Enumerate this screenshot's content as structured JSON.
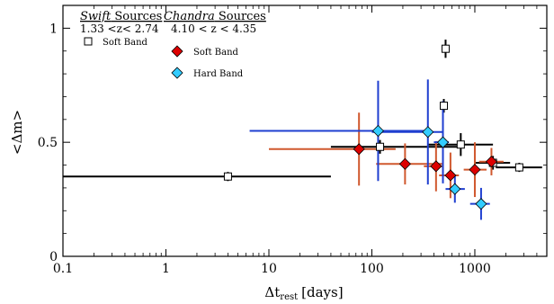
{
  "chart_data": {
    "type": "scatter",
    "xlabel_main": "Δt",
    "xlabel_sub": "rest",
    "xlabel_unit": "[days]",
    "ylabel": "<Δm>",
    "x_scale": "log",
    "xlim": [
      0.1,
      5000
    ],
    "ylim": [
      0,
      1.1
    ],
    "x_ticks": [
      {
        "value": 0.1,
        "label": "0.1"
      },
      {
        "value": 1,
        "label": "1"
      },
      {
        "value": 10,
        "label": "10"
      },
      {
        "value": 100,
        "label": "100"
      },
      {
        "value": 1000,
        "label": "1000"
      }
    ],
    "y_ticks": [
      {
        "value": 0,
        "label": "0"
      },
      {
        "value": 0.5,
        "label": "0.5"
      },
      {
        "value": 1,
        "label": "1"
      }
    ],
    "legend": {
      "swift_title_italic": "Swift",
      "swift_title_rest": " Sources",
      "swift_range": "1.33 <z< 2.74",
      "chandra_title_italic": "Chandra",
      "chandra_title_rest": " Sources",
      "chandra_range": "4.10 < z < 4.35",
      "swift_soft_label": "Soft Band",
      "chandra_soft_label": "Soft Band",
      "chandra_hard_label": "Hard Band"
    },
    "series": [
      {
        "name": "Swift Soft Band",
        "marker": "open-square",
        "color": "#000000",
        "points": [
          {
            "x": 4,
            "y": 0.35,
            "xlo": 0.1,
            "xhi": 40,
            "yerr": 0.02
          },
          {
            "x": 120,
            "y": 0.48,
            "xlo": 40,
            "xhi": 700,
            "yerr": 0.03
          },
          {
            "x": 500,
            "y": 0.66,
            "xlo": 480,
            "xhi": 520,
            "yerr": 0.03
          },
          {
            "x": 520,
            "y": 0.91,
            "xlo": 490,
            "xhi": 560,
            "yerr": 0.04
          },
          {
            "x": 730,
            "y": 0.49,
            "xlo": 350,
            "xhi": 1500,
            "yerr": 0.05
          },
          {
            "x": 1500,
            "y": 0.41,
            "xlo": 1000,
            "xhi": 2200,
            "yerr": 0.03
          },
          {
            "x": 2700,
            "y": 0.39,
            "xlo": 1600,
            "xhi": 4500,
            "yerr": 0.02
          }
        ]
      },
      {
        "name": "Chandra Soft Band",
        "marker": "diamond",
        "color": "#dd0000",
        "errcolor": "#d0582e",
        "points": [
          {
            "x": 75,
            "y": 0.47,
            "xlo": 10,
            "xhi": 170,
            "yerr": 0.16
          },
          {
            "x": 210,
            "y": 0.405,
            "xlo": 110,
            "xhi": 480,
            "yerr": 0.09
          },
          {
            "x": 420,
            "y": 0.395,
            "xlo": 320,
            "xhi": 480,
            "yerr": 0.11
          },
          {
            "x": 580,
            "y": 0.355,
            "xlo": 450,
            "xhi": 700,
            "yerr": 0.1
          },
          {
            "x": 1000,
            "y": 0.38,
            "xlo": 780,
            "xhi": 1300,
            "yerr": 0.12
          },
          {
            "x": 1450,
            "y": 0.415,
            "xlo": 1100,
            "xhi": 1900,
            "yerr": 0.06
          }
        ]
      },
      {
        "name": "Chandra Hard Band",
        "marker": "diamond",
        "color": "#33ccff",
        "errcolor": "#1f3fd0",
        "points": [
          {
            "x": 115,
            "y": 0.55,
            "xlo": 6.5,
            "xhi": 370,
            "yerr": 0.22
          },
          {
            "x": 350,
            "y": 0.545,
            "xlo": 100,
            "xhi": 500,
            "yerr": 0.23
          },
          {
            "x": 490,
            "y": 0.5,
            "xlo": 400,
            "xhi": 560,
            "yerr": 0.18
          },
          {
            "x": 640,
            "y": 0.295,
            "xlo": 520,
            "xhi": 800,
            "yerr": 0.06
          },
          {
            "x": 1150,
            "y": 0.23,
            "xlo": 900,
            "xhi": 1400,
            "yerr": 0.07
          }
        ]
      }
    ]
  }
}
